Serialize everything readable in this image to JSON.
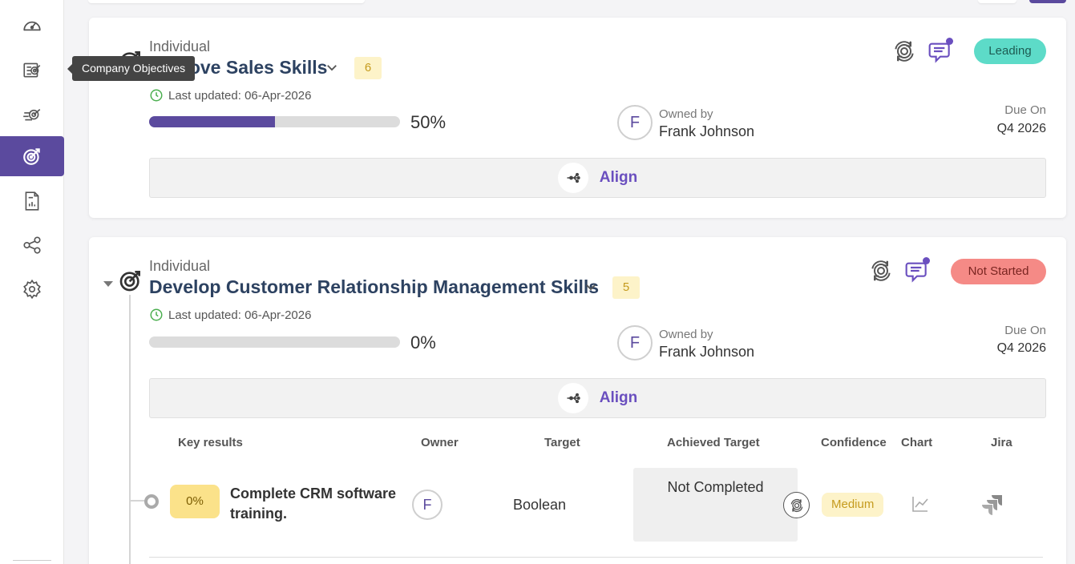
{
  "sidebar": {
    "items": [
      {
        "icon": "dashboard-icon"
      },
      {
        "icon": "company-objectives-icon"
      },
      {
        "icon": "team-objectives-icon"
      },
      {
        "icon": "my-objectives-icon"
      },
      {
        "icon": "reports-icon"
      },
      {
        "icon": "alignment-icon"
      },
      {
        "icon": "settings-icon"
      }
    ],
    "tooltip": "Company Objectives",
    "accent": "#5b4a9e"
  },
  "objectives": [
    {
      "type": "Individual",
      "title": "Improve Sales Skills",
      "count": "6",
      "updated": "Last updated: 06-Apr-2026",
      "progress": 50,
      "progress_text": "50%",
      "owner_initial": "F",
      "owned_label": "Owned by",
      "owner_name": "Frank Johnson",
      "due_label": "Due On",
      "due_value": "Q4 2026",
      "status": "Leading",
      "align_label": "Align"
    },
    {
      "type": "Individual",
      "title": "Develop Customer Relationship Management Skills",
      "count": "5",
      "updated": "Last updated: 06-Apr-2026",
      "progress": 0,
      "progress_text": "0%",
      "owner_initial": "F",
      "owned_label": "Owned by",
      "owner_name": "Frank Johnson",
      "due_label": "Due On",
      "due_value": "Q4 2026",
      "status": "Not Started",
      "align_label": "Align",
      "key_results": {
        "headers": [
          "Key results",
          "Owner",
          "Target",
          "Achieved Target",
          "Confidence",
          "Chart",
          "Jira"
        ],
        "rows": [
          {
            "pct": "0%",
            "title": "Complete CRM software training.",
            "owner_initial": "F",
            "target": "Boolean",
            "achieved": "Not Completed",
            "confidence": "Medium"
          }
        ]
      }
    }
  ]
}
